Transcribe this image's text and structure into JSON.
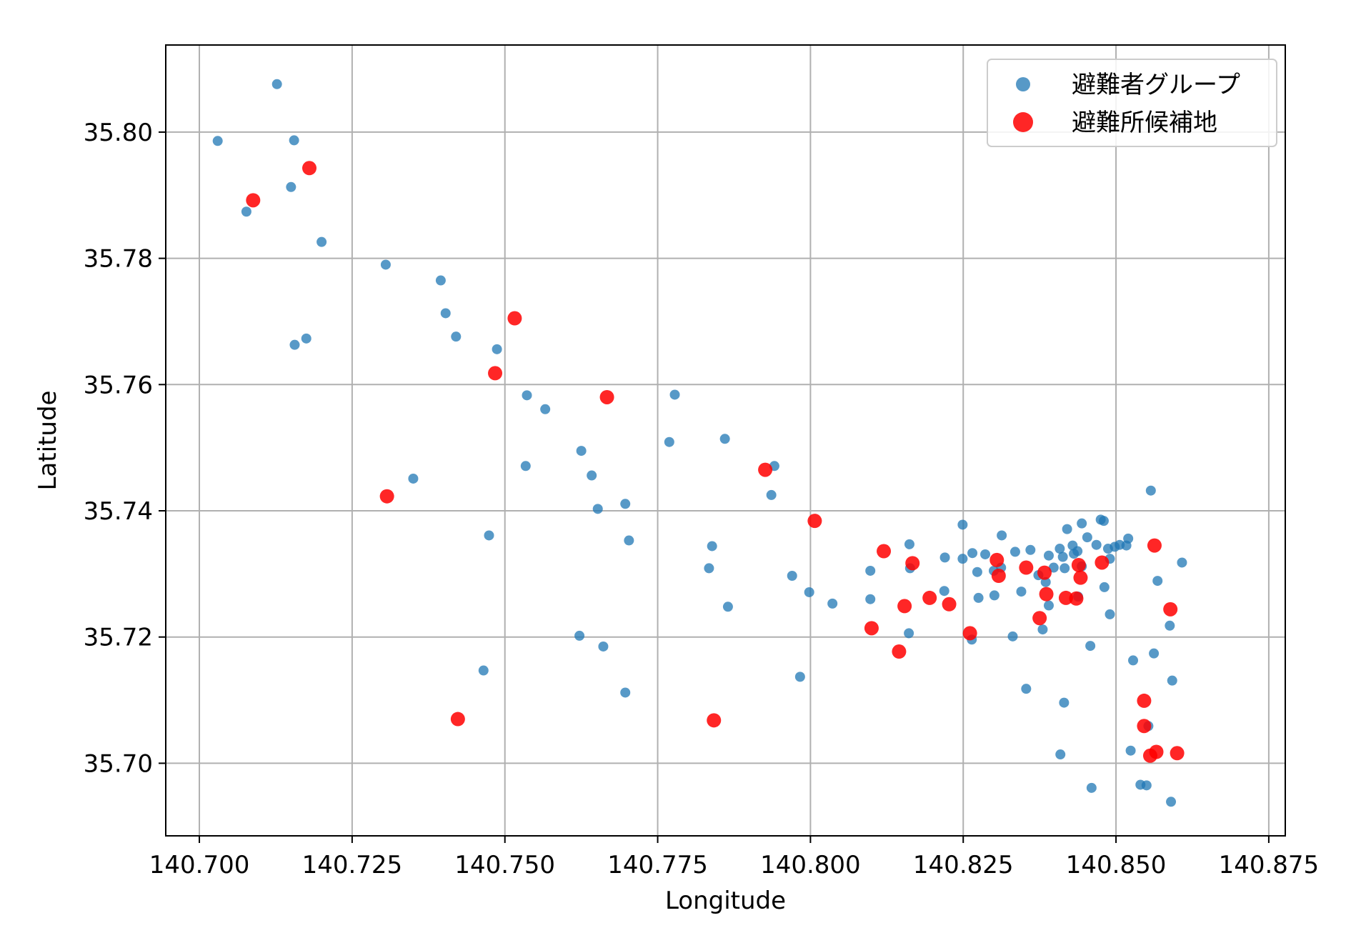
{
  "chart_data": {
    "type": "scatter",
    "title": "",
    "xlabel": "Longitude",
    "ylabel": "Latitude",
    "xlim": [
      140.6945,
      140.8777
    ],
    "ylim": [
      35.6885,
      35.8138
    ],
    "xticks": [
      "140.700",
      "140.725",
      "140.750",
      "140.775",
      "140.800",
      "140.825",
      "140.850",
      "140.875"
    ],
    "yticks": [
      "35.70",
      "35.72",
      "35.74",
      "35.76",
      "35.78",
      "35.80"
    ],
    "grid": true,
    "legend_position": "top-right",
    "series": [
      {
        "name": "避難者グループ",
        "color": "#1f77b4",
        "points": [
          [
            140.7127,
            35.8076
          ],
          [
            140.703,
            35.7986
          ],
          [
            140.7155,
            35.7987
          ],
          [
            140.715,
            35.7913
          ],
          [
            140.7077,
            35.7874
          ],
          [
            140.72,
            35.7826
          ],
          [
            140.7305,
            35.779
          ],
          [
            140.7395,
            35.7765
          ],
          [
            140.7403,
            35.7713
          ],
          [
            140.742,
            35.7676
          ],
          [
            140.7175,
            35.7673
          ],
          [
            140.7156,
            35.7663
          ],
          [
            140.7487,
            35.7656
          ],
          [
            140.7536,
            35.7583
          ],
          [
            140.7566,
            35.7561
          ],
          [
            140.7778,
            35.7584
          ],
          [
            140.7769,
            35.7509
          ],
          [
            140.786,
            35.7514
          ],
          [
            140.7625,
            35.7495
          ],
          [
            140.7534,
            35.7471
          ],
          [
            140.7642,
            35.7456
          ],
          [
            140.735,
            35.7451
          ],
          [
            140.7652,
            35.7403
          ],
          [
            140.7697,
            35.7411
          ],
          [
            140.7941,
            35.7471
          ],
          [
            140.7936,
            35.7425
          ],
          [
            140.7474,
            35.7361
          ],
          [
            140.7703,
            35.7353
          ],
          [
            140.7839,
            35.7344
          ],
          [
            140.7834,
            35.7309
          ],
          [
            140.7865,
            35.7248
          ],
          [
            140.797,
            35.7297
          ],
          [
            140.7998,
            35.7271
          ],
          [
            140.8036,
            35.7253
          ],
          [
            140.8098,
            35.7305
          ],
          [
            140.8098,
            35.726
          ],
          [
            140.8162,
            35.7347
          ],
          [
            140.822,
            35.7326
          ],
          [
            140.8249,
            35.7378
          ],
          [
            140.8249,
            35.7324
          ],
          [
            140.8265,
            35.7333
          ],
          [
            140.8273,
            35.7303
          ],
          [
            140.8275,
            35.7262
          ],
          [
            140.8286,
            35.7331
          ],
          [
            140.83,
            35.7305
          ],
          [
            140.8301,
            35.7266
          ],
          [
            140.8313,
            35.7361
          ],
          [
            140.8312,
            35.731
          ],
          [
            140.8335,
            35.7335
          ],
          [
            140.8345,
            35.7272
          ],
          [
            140.836,
            35.7338
          ],
          [
            140.8373,
            35.7298
          ],
          [
            140.8385,
            35.7287
          ],
          [
            140.839,
            35.725
          ],
          [
            140.839,
            35.7329
          ],
          [
            140.8398,
            35.731
          ],
          [
            140.8408,
            35.734
          ],
          [
            140.8413,
            35.7327
          ],
          [
            140.8416,
            35.7309
          ],
          [
            140.842,
            35.7371
          ],
          [
            140.8429,
            35.7345
          ],
          [
            140.8431,
            35.7332
          ],
          [
            140.8437,
            35.7336
          ],
          [
            140.8444,
            35.738
          ],
          [
            140.8444,
            35.7312
          ],
          [
            140.8453,
            35.7358
          ],
          [
            140.8468,
            35.7346
          ],
          [
            140.8475,
            35.7386
          ],
          [
            140.848,
            35.7384
          ],
          [
            140.8481,
            35.7279
          ],
          [
            140.8487,
            35.734
          ],
          [
            140.849,
            35.7324
          ],
          [
            140.849,
            35.7236
          ],
          [
            140.8498,
            35.7343
          ],
          [
            140.8506,
            35.7346
          ],
          [
            140.8517,
            35.7345
          ],
          [
            140.852,
            35.7356
          ],
          [
            140.8557,
            35.7432
          ],
          [
            140.8568,
            35.7289
          ],
          [
            140.8562,
            35.7174
          ],
          [
            140.8528,
            35.7163
          ],
          [
            140.8588,
            35.7218
          ],
          [
            140.8608,
            35.7318
          ],
          [
            140.8219,
            35.7273
          ],
          [
            140.8161,
            35.7206
          ],
          [
            140.8264,
            35.7196
          ],
          [
            140.8331,
            35.7201
          ],
          [
            140.838,
            35.7212
          ],
          [
            140.8458,
            35.7186
          ],
          [
            140.8353,
            35.7118
          ],
          [
            140.8415,
            35.7096
          ],
          [
            140.8409,
            35.7014
          ],
          [
            140.8524,
            35.702
          ],
          [
            140.8553,
            35.7059
          ],
          [
            140.854,
            35.6966
          ],
          [
            140.855,
            35.6965
          ],
          [
            140.846,
            35.6961
          ],
          [
            140.859,
            35.6939
          ],
          [
            140.8592,
            35.7131
          ],
          [
            140.7622,
            35.7202
          ],
          [
            140.7661,
            35.7185
          ],
          [
            140.7697,
            35.7112
          ],
          [
            140.7465,
            35.7147
          ],
          [
            140.7983,
            35.7137
          ],
          [
            140.8163,
            35.7309
          ],
          [
            140.8438,
            35.7264
          ]
        ]
      },
      {
        "name": "避難所候補地",
        "color": "#ff0000",
        "points": [
          [
            140.718,
            35.7943
          ],
          [
            140.7088,
            35.7892
          ],
          [
            140.7516,
            35.7705
          ],
          [
            140.7484,
            35.7618
          ],
          [
            140.7667,
            35.758
          ],
          [
            140.7926,
            35.7465
          ],
          [
            140.7307,
            35.7423
          ],
          [
            140.8007,
            35.7384
          ],
          [
            140.812,
            35.7336
          ],
          [
            140.8167,
            35.7317
          ],
          [
            140.8305,
            35.7322
          ],
          [
            140.8308,
            35.7297
          ],
          [
            140.8353,
            35.731
          ],
          [
            140.8383,
            35.7302
          ],
          [
            140.8386,
            35.7268
          ],
          [
            140.8439,
            35.7314
          ],
          [
            140.8442,
            35.7294
          ],
          [
            140.8477,
            35.7318
          ],
          [
            140.8563,
            35.7345
          ],
          [
            140.8435,
            35.7261
          ],
          [
            140.8418,
            35.7262
          ],
          [
            140.8195,
            35.7262
          ],
          [
            140.8227,
            35.7252
          ],
          [
            140.8154,
            35.7249
          ],
          [
            140.8589,
            35.7244
          ],
          [
            140.8375,
            35.723
          ],
          [
            140.81,
            35.7214
          ],
          [
            140.8261,
            35.7206
          ],
          [
            140.8145,
            35.7177
          ],
          [
            140.7423,
            35.707
          ],
          [
            140.7842,
            35.7068
          ],
          [
            140.8546,
            35.7099
          ],
          [
            140.8546,
            35.7059
          ],
          [
            140.8556,
            35.7012
          ],
          [
            140.8566,
            35.7018
          ],
          [
            140.86,
            35.7016
          ]
        ]
      }
    ]
  }
}
